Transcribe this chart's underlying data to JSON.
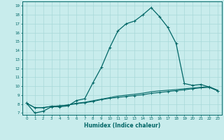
{
  "xlabel": "Humidex (Indice chaleur)",
  "ylabel": "",
  "bg_color": "#c8ecec",
  "line_color": "#006666",
  "grid_color": "#a8d8d8",
  "xlim": [
    -0.5,
    23.5
  ],
  "ylim": [
    6.8,
    19.5
  ],
  "xticks": [
    0,
    1,
    2,
    3,
    4,
    5,
    6,
    7,
    8,
    9,
    10,
    11,
    12,
    13,
    14,
    15,
    16,
    17,
    18,
    19,
    20,
    21,
    22,
    23
  ],
  "yticks": [
    7,
    8,
    9,
    10,
    11,
    12,
    13,
    14,
    15,
    16,
    17,
    18,
    19
  ],
  "curve1_x": [
    0,
    1,
    2,
    3,
    4,
    5,
    6,
    7,
    8,
    9,
    10,
    11,
    12,
    13,
    14,
    15,
    16,
    17,
    18,
    19,
    20,
    21,
    22,
    23
  ],
  "curve1_y": [
    8.1,
    7.0,
    7.2,
    7.7,
    7.7,
    7.8,
    8.4,
    8.6,
    10.4,
    12.1,
    14.3,
    16.2,
    17.0,
    17.3,
    18.0,
    18.8,
    17.8,
    16.6,
    14.8,
    10.3,
    10.1,
    10.2,
    9.9,
    9.5
  ],
  "curve2_x": [
    0,
    1,
    2,
    3,
    4,
    5,
    6,
    7,
    8,
    9,
    10,
    11,
    12,
    13,
    14,
    15,
    16,
    17,
    18,
    19,
    20,
    21,
    22,
    23
  ],
  "curve2_y": [
    8.1,
    7.6,
    7.6,
    7.75,
    7.8,
    7.9,
    8.05,
    8.15,
    8.3,
    8.5,
    8.65,
    8.75,
    8.85,
    8.95,
    9.05,
    9.2,
    9.3,
    9.4,
    9.5,
    9.6,
    9.72,
    9.82,
    9.88,
    9.5
  ],
  "curve3_x": [
    0,
    1,
    2,
    3,
    4,
    5,
    6,
    7,
    8,
    9,
    10,
    11,
    12,
    13,
    14,
    15,
    16,
    17,
    18,
    19,
    20,
    21,
    22,
    23
  ],
  "curve3_y": [
    8.1,
    7.6,
    7.6,
    7.75,
    7.8,
    7.9,
    8.1,
    8.2,
    8.38,
    8.55,
    8.72,
    8.9,
    9.0,
    9.1,
    9.22,
    9.38,
    9.48,
    9.55,
    9.62,
    9.72,
    9.8,
    9.88,
    9.94,
    9.56
  ]
}
